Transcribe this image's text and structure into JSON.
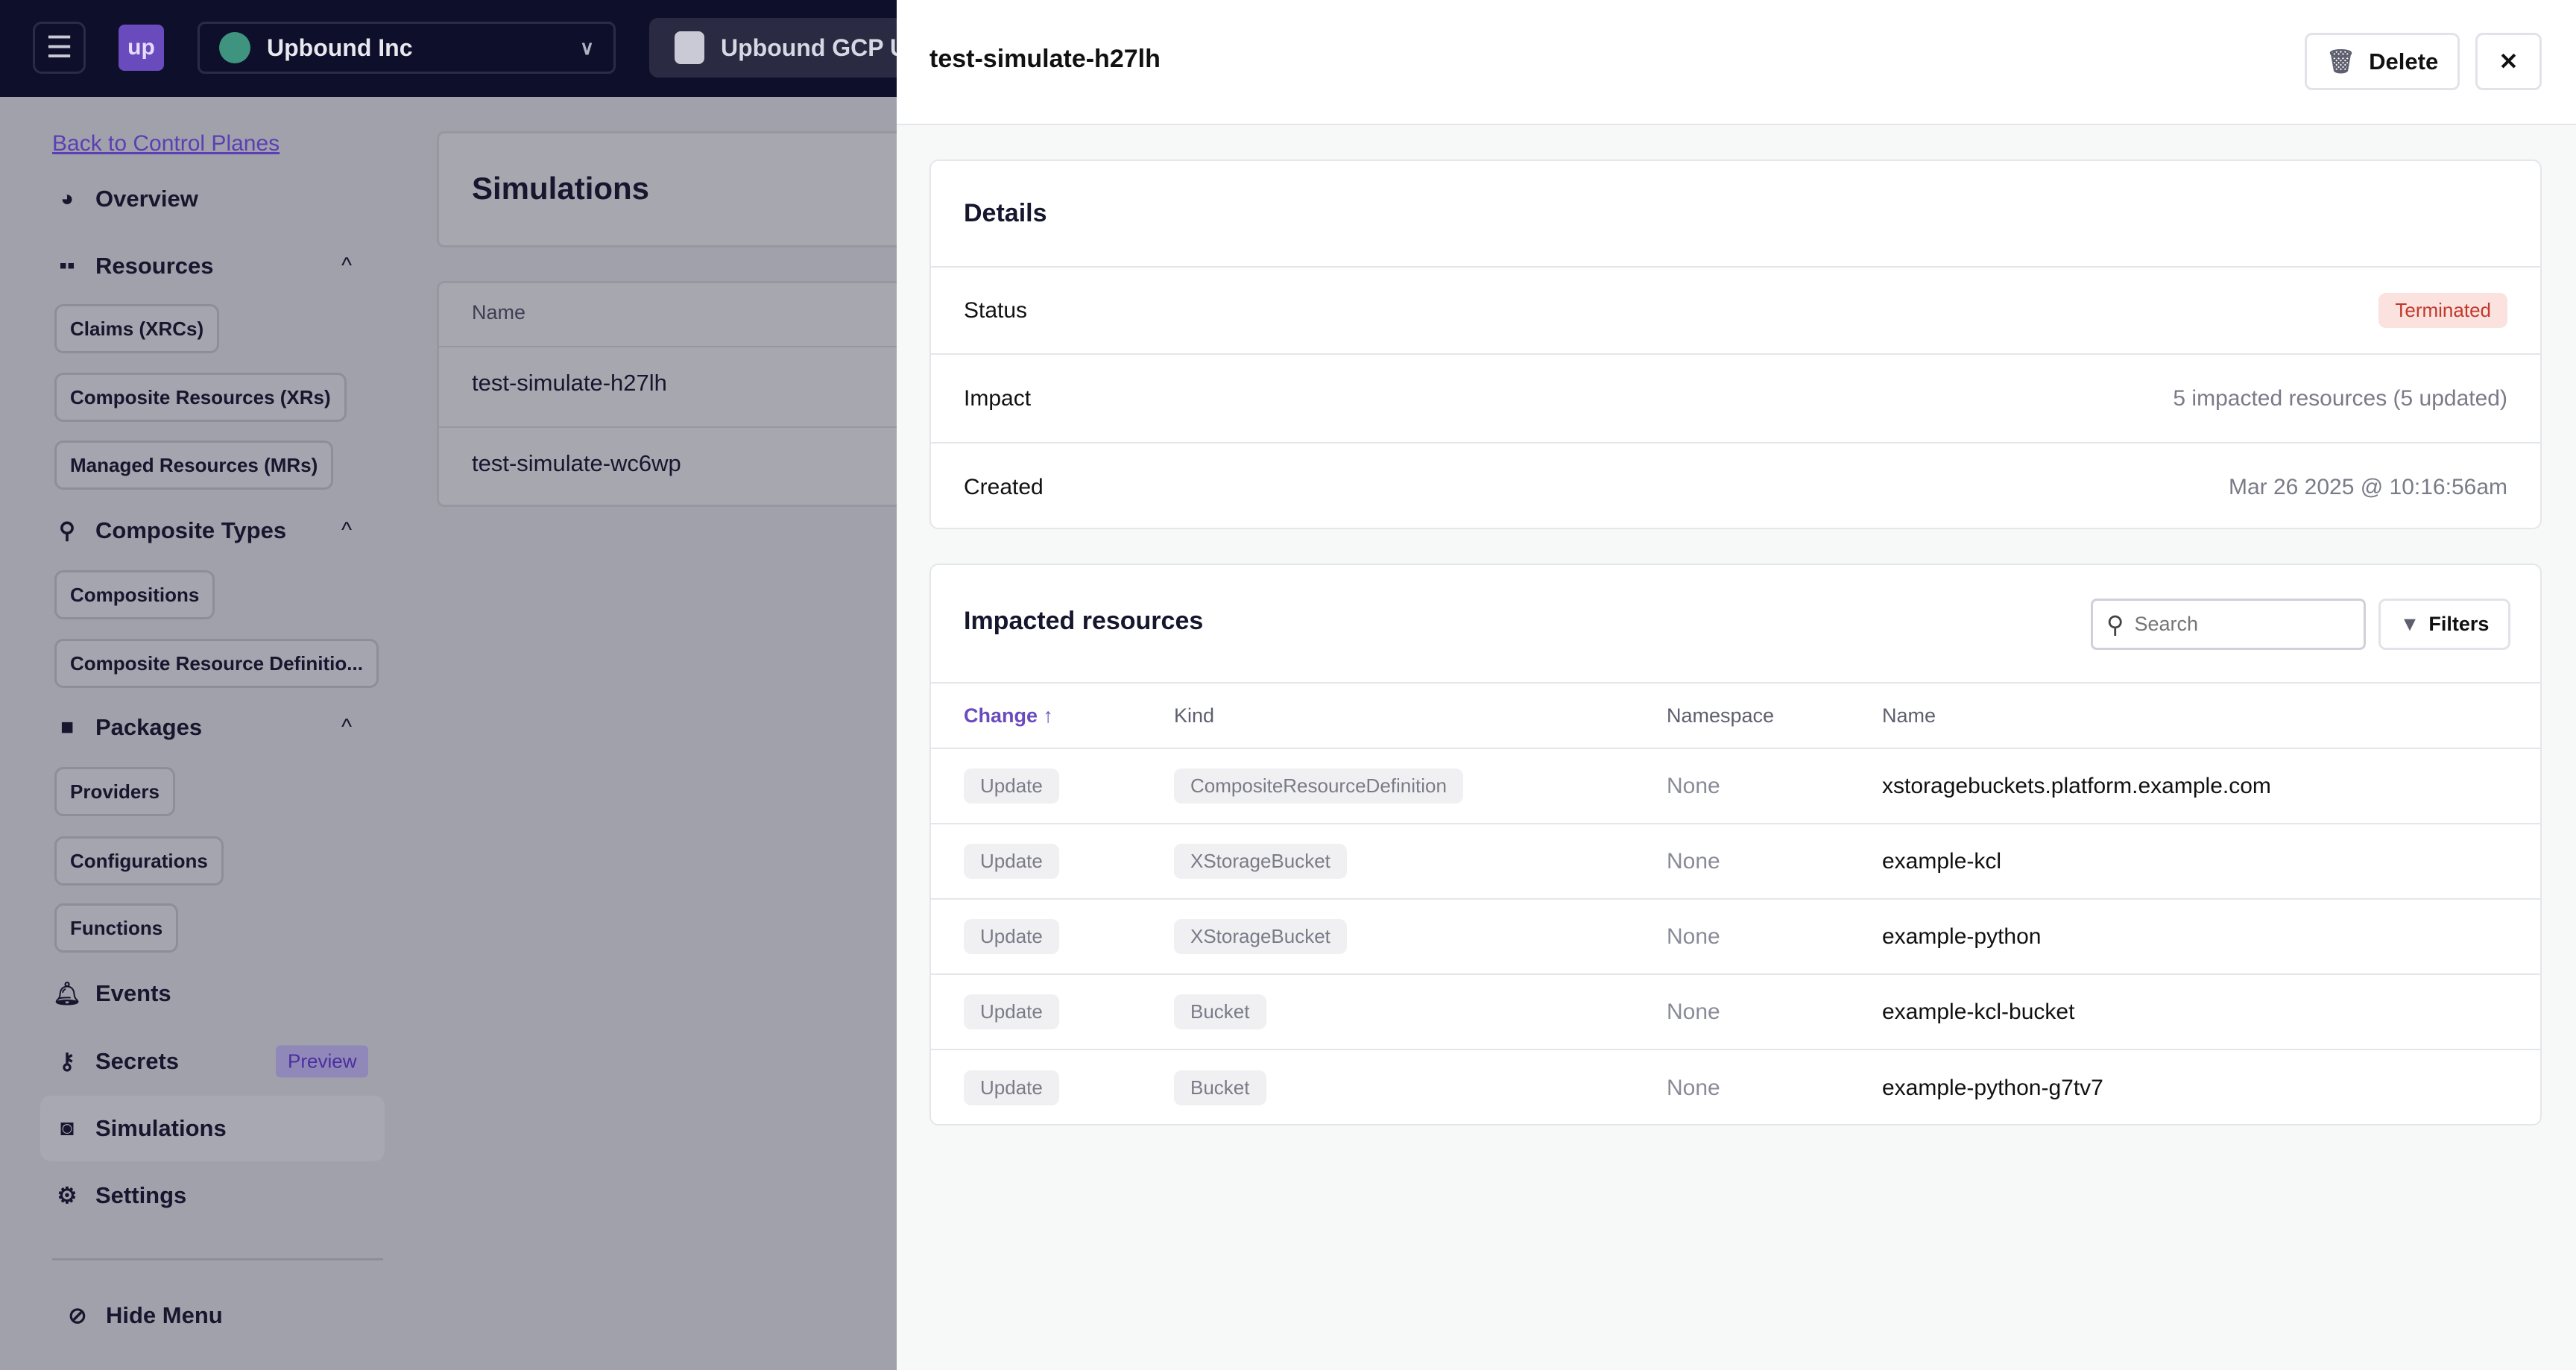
{
  "topbar": {
    "org": "Upbound Inc",
    "logo": "up",
    "control_plane": "Upbound GCP U"
  },
  "sidebar": {
    "back_link": "Back to Control Planes",
    "overview": "Overview",
    "resources": "Resources",
    "resource_items": [
      "Claims (XRCs)",
      "Composite Resources (XRs)",
      "Managed Resources (MRs)"
    ],
    "composite_types": "Composite Types",
    "composite_items": [
      "Compositions",
      "Composite Resource Definitio..."
    ],
    "packages": "Packages",
    "package_items": [
      "Providers",
      "Configurations",
      "Functions"
    ],
    "events": "Events",
    "secrets": "Secrets",
    "preview_badge": "Preview",
    "simulations": "Simulations",
    "settings": "Settings",
    "hide_menu": "Hide Menu"
  },
  "main": {
    "title": "Simulations",
    "column_name": "Name",
    "rows": [
      "test-simulate-h27lh",
      "test-simulate-wc6wp"
    ]
  },
  "drawer": {
    "title": "test-simulate-h27lh",
    "delete_label": "Delete",
    "details": {
      "heading": "Details",
      "status_label": "Status",
      "status_value": "Terminated",
      "impact_label": "Impact",
      "impact_value": "5 impacted resources (5 updated)",
      "created_label": "Created",
      "created_value": "Mar 26 2025 @ 10:16:56am"
    },
    "impacted": {
      "heading": "Impacted resources",
      "search_placeholder": "Search",
      "filters_label": "Filters",
      "columns": [
        "Change ↑",
        "Kind",
        "Namespace",
        "Name"
      ],
      "rows": [
        [
          "Update",
          "CompositeResourceDefinition",
          "None",
          "xstoragebuckets.platform.example.com"
        ],
        [
          "Update",
          "XStorageBucket",
          "None",
          "example-kcl"
        ],
        [
          "Update",
          "XStorageBucket",
          "None",
          "example-python"
        ],
        [
          "Update",
          "Bucket",
          "None",
          "example-kcl-bucket"
        ],
        [
          "Update",
          "Bucket",
          "None",
          "example-python-g7tv7"
        ]
      ]
    }
  },
  "colors": {
    "accent": "#6a4bbd",
    "header_bg": "#0e0f2a",
    "terminated": "#c0392b"
  }
}
